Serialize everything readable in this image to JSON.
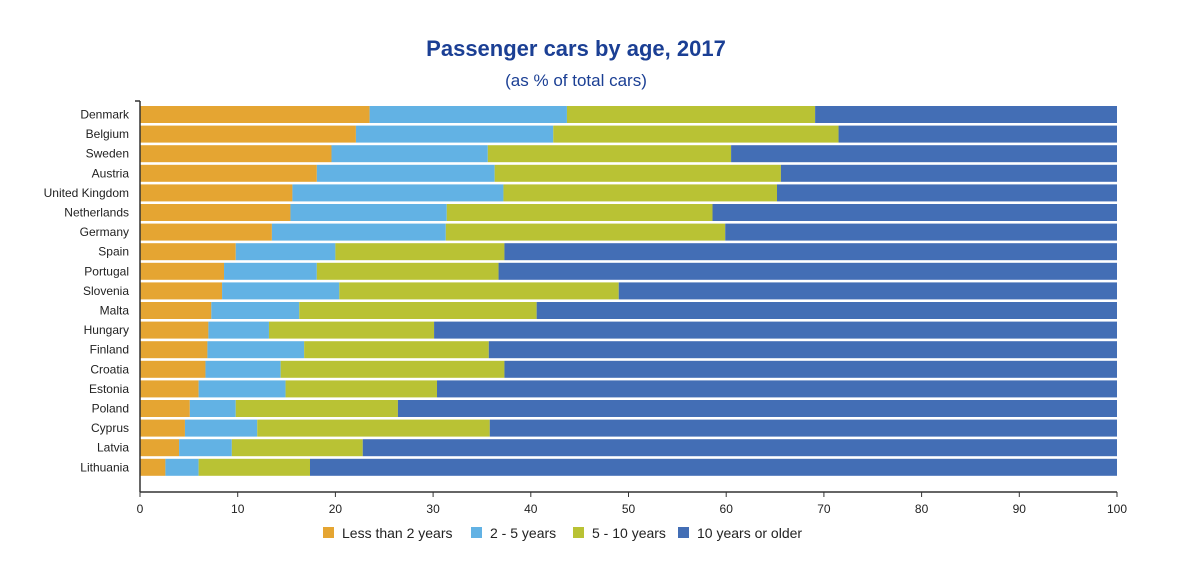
{
  "chart_data": {
    "type": "bar",
    "orientation": "horizontal",
    "stacked": true,
    "title": "Passenger cars by age, 2017",
    "subtitle": "(as % of total cars)",
    "xlabel": "",
    "ylabel": "",
    "xlim": [
      0,
      100
    ],
    "xticks": [
      "0",
      "10",
      "20",
      "30",
      "40",
      "50",
      "60",
      "70",
      "80",
      "90",
      "100"
    ],
    "grid": false,
    "legend_position": "bottom",
    "categories": [
      "Denmark",
      "Belgium",
      "Sweden",
      "Austria",
      "United Kingdom",
      "Netherlands",
      "Germany",
      "Spain",
      "Portugal",
      "Slovenia",
      "Malta",
      "Hungary",
      "Finland",
      "Croatia",
      "Estonia",
      "Poland",
      "Cyprus",
      "Latvia",
      "Lithuania"
    ],
    "series": [
      {
        "name": "Less than 2 years",
        "color": "#e5a532",
        "values": [
          23.5,
          22.1,
          19.6,
          18.1,
          15.6,
          15.4,
          13.5,
          9.8,
          8.6,
          8.4,
          7.3,
          7.0,
          6.9,
          6.7,
          6.0,
          5.1,
          4.6,
          4.0,
          2.6
        ]
      },
      {
        "name": "2 - 5 years",
        "color": "#62b2e4",
        "values": [
          20.2,
          20.2,
          16.0,
          18.2,
          21.6,
          16.0,
          17.8,
          10.2,
          9.5,
          12.0,
          9.0,
          6.2,
          9.9,
          7.7,
          8.9,
          4.7,
          7.4,
          5.4,
          3.4
        ]
      },
      {
        "name": "5 - 10 years",
        "color": "#b9c234",
        "values": [
          25.4,
          29.2,
          24.9,
          29.3,
          28.0,
          27.2,
          28.6,
          17.3,
          18.6,
          28.6,
          24.3,
          16.9,
          18.9,
          22.9,
          15.5,
          16.6,
          23.8,
          13.4,
          11.4
        ]
      },
      {
        "name": "10 years or older",
        "color": "#436eb5",
        "values": [
          30.9,
          28.5,
          39.5,
          34.4,
          34.8,
          41.4,
          40.1,
          62.7,
          63.3,
          51.0,
          59.4,
          69.9,
          64.3,
          62.7,
          69.6,
          73.6,
          64.2,
          77.2,
          82.6
        ]
      }
    ]
  }
}
